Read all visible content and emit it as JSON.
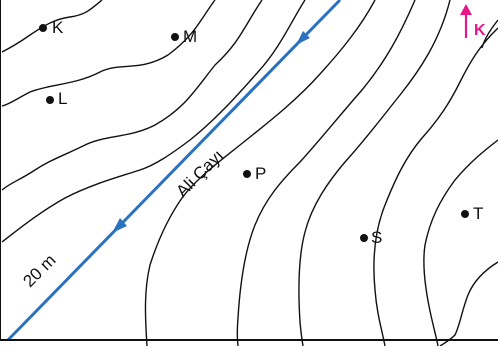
{
  "map": {
    "points": [
      {
        "label": "K"
      },
      {
        "label": "M"
      },
      {
        "label": "L"
      },
      {
        "label": "P"
      },
      {
        "label": "S"
      },
      {
        "label": "T"
      }
    ],
    "river": {
      "label": "Ali Çayı",
      "color": "#2a72c0"
    },
    "contour_interval_label": "20 m",
    "north_label": "K",
    "north_color": "#e6168a",
    "contour_color": "#111111"
  }
}
